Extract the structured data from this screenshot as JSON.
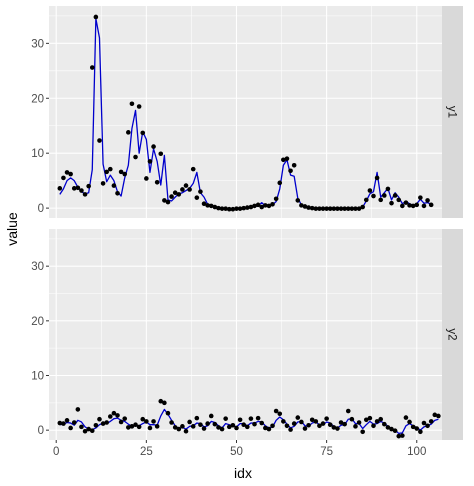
{
  "chart_data": {
    "type": "line",
    "xlabel": "idx",
    "ylabel": "value",
    "xlim": [
      -2,
      107
    ],
    "ylim": [
      -1.8,
      36.8
    ],
    "x_ticks": [
      0,
      25,
      50,
      75,
      100
    ],
    "y_ticks": [
      0,
      10,
      20,
      30
    ],
    "grid": true,
    "colors": {
      "line": "#0000cc",
      "points": "#000000",
      "panel": "#ebebeb",
      "strip": "#d9d9d9"
    },
    "panels": [
      {
        "strip_label": "y1",
        "points": [
          3.6,
          5.5,
          6.5,
          6.2,
          3.6,
          3.7,
          3.2,
          2.5,
          4.0,
          25.6,
          34.8,
          12.3,
          4.5,
          6.6,
          7.1,
          4.1,
          2.7,
          6.6,
          6.2,
          13.8,
          19.0,
          9.3,
          18.5,
          13.7,
          5.4,
          8.5,
          11.2,
          4.7,
          9.9,
          1.4,
          1.1,
          2.1,
          2.8,
          2.5,
          3.4,
          4.1,
          3.4,
          7.1,
          1.9,
          3.0,
          0.8,
          0.5,
          0.4,
          0.2,
          0.0,
          -0.1,
          -0.1,
          -0.2,
          -0.2,
          -0.1,
          -0.1,
          0.0,
          0.1,
          0.2,
          0.4,
          0.6,
          0.2,
          0.5,
          0.4,
          0.7,
          1.7,
          4.6,
          8.8,
          9.0,
          6.8,
          7.8,
          1.4,
          0.5,
          0.3,
          0.1,
          0.0,
          -0.1,
          -0.1,
          -0.1,
          -0.1,
          -0.1,
          -0.1,
          -0.1,
          -0.1,
          -0.1,
          -0.1,
          -0.1,
          -0.1,
          -0.1,
          0.2,
          1.5,
          3.2,
          2.2,
          5.5,
          1.5,
          2.3,
          3.5,
          0.9,
          2.3,
          1.5,
          0.4,
          1.0,
          0.5,
          0.4,
          0.6,
          1.9,
          0.4,
          1.4,
          0.6
        ],
        "fitted": [
          2.5,
          3.5,
          5.0,
          5.5,
          5.0,
          3.8,
          3.0,
          2.6,
          2.8,
          7.0,
          34.5,
          31.0,
          8.0,
          4.8,
          6.0,
          5.0,
          3.0,
          2.2,
          5.5,
          7.8,
          14.5,
          17.8,
          10.0,
          13.9,
          12.5,
          6.5,
          10.8,
          8.5,
          4.2,
          9.6,
          1.5,
          1.3,
          2.0,
          2.6,
          2.8,
          3.2,
          3.6,
          4.5,
          6.5,
          2.8,
          2.0,
          0.7,
          0.5,
          0.3,
          0.1,
          0.0,
          -0.1,
          -0.1,
          -0.1,
          0.0,
          0.0,
          0.0,
          0.1,
          0.2,
          0.3,
          0.4,
          1.0,
          0.4,
          0.5,
          0.6,
          1.2,
          3.5,
          7.8,
          8.8,
          6.0,
          5.8,
          1.8,
          0.6,
          0.3,
          0.1,
          0.0,
          0.0,
          0.0,
          -0.1,
          -0.1,
          -0.1,
          -0.1,
          -0.1,
          -0.1,
          -0.1,
          -0.1,
          -0.1,
          -0.1,
          0.0,
          0.2,
          1.3,
          2.6,
          3.0,
          6.5,
          2.0,
          2.8,
          3.6,
          1.5,
          2.8,
          2.0,
          0.8,
          1.2,
          0.8,
          0.5,
          0.8,
          1.6,
          0.9,
          1.0,
          0.7
        ]
      },
      {
        "strip_label": "y2",
        "points": [
          1.3,
          1.2,
          1.8,
          0.4,
          1.4,
          3.8,
          0.6,
          -0.2,
          0.2,
          -0.1,
          0.9,
          2.0,
          1.2,
          1.4,
          2.5,
          3.1,
          2.7,
          1.5,
          2.1,
          0.5,
          0.7,
          1.0,
          0.6,
          2.0,
          1.6,
          0.4,
          1.6,
          0.7,
          5.3,
          5.0,
          3.1,
          1.4,
          0.5,
          0.2,
          0.7,
          -0.2,
          1.5,
          0.7,
          2.2,
          1.0,
          0.3,
          1.2,
          2.6,
          1.1,
          0.5,
          0.2,
          2.1,
          0.6,
          0.9,
          0.4,
          1.9,
          1.0,
          0.6,
          2.1,
          1.1,
          2.2,
          1.3,
          0.4,
          0.2,
          0.8,
          3.5,
          3.0,
          1.6,
          0.8,
          0.1,
          1.2,
          2.3,
          1.5,
          0.3,
          0.9,
          1.9,
          1.6,
          0.8,
          1.2,
          2.1,
          1.0,
          0.5,
          0.3,
          1.4,
          1.1,
          3.5,
          2.0,
          0.7,
          1.4,
          -0.3,
          1.9,
          2.2,
          0.8,
          1.6,
          2.0,
          1.1,
          0.5,
          0.2,
          -0.1,
          -1.1,
          -1.0,
          2.3,
          1.5,
          0.6,
          0.3,
          -0.3,
          1.3,
          0.8,
          1.6,
          2.8,
          2.6
        ],
        "fitted": [
          1.0,
          1.1,
          1.4,
          1.3,
          0.9,
          1.8,
          1.5,
          0.6,
          0.2,
          0.1,
          0.4,
          1.0,
          1.3,
          1.2,
          1.6,
          2.1,
          2.2,
          1.8,
          1.6,
          1.1,
          0.7,
          0.8,
          0.8,
          1.2,
          1.5,
          1.0,
          1.0,
          0.9,
          2.6,
          3.8,
          2.9,
          1.8,
          0.8,
          0.3,
          0.5,
          0.2,
          0.7,
          0.8,
          1.3,
          1.2,
          0.6,
          0.8,
          1.6,
          1.4,
          0.8,
          0.4,
          1.2,
          1.0,
          0.8,
          0.6,
          1.2,
          1.2,
          0.8,
          1.3,
          1.3,
          1.6,
          1.5,
          0.8,
          0.4,
          0.6,
          1.8,
          2.4,
          1.9,
          1.1,
          0.4,
          0.7,
          1.5,
          1.6,
          0.8,
          0.7,
          1.3,
          1.5,
          1.0,
          1.0,
          1.5,
          1.3,
          0.7,
          0.4,
          0.9,
          1.0,
          2.0,
          2.1,
          1.2,
          1.2,
          0.3,
          1.0,
          1.6,
          1.1,
          1.2,
          1.6,
          1.3,
          0.7,
          0.3,
          0.0,
          -0.6,
          -0.5,
          0.8,
          1.2,
          0.8,
          0.5,
          0.0,
          0.6,
          0.8,
          1.1,
          1.8,
          2.0
        ]
      }
    ]
  }
}
